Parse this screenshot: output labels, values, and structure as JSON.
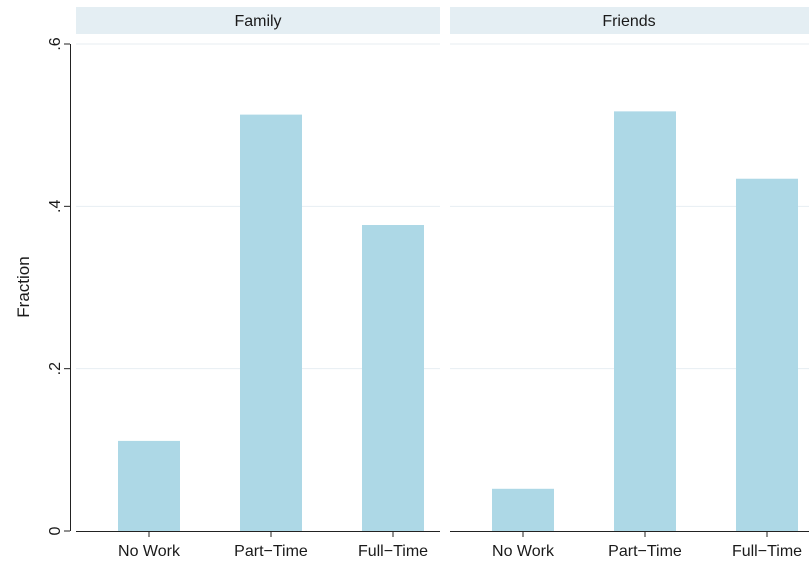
{
  "chart_data": {
    "type": "bar",
    "ylabel": "Fraction",
    "ylim": [
      0,
      0.6
    ],
    "yticks": [
      {
        "value": 0,
        "label": "0"
      },
      {
        "value": 0.2,
        "label": ".2"
      },
      {
        "value": 0.4,
        "label": ".4"
      },
      {
        "value": 0.6,
        "label": ".6"
      }
    ],
    "grid": true,
    "bar_color": "#add8e6",
    "header_color": "#e4eef3",
    "categories": [
      "No Work",
      "Part−Time",
      "Full−Time"
    ],
    "panels": [
      {
        "title": "Family",
        "values": [
          0.111,
          0.513,
          0.377
        ]
      },
      {
        "title": "Friends",
        "values": [
          0.052,
          0.517,
          0.434
        ]
      }
    ]
  }
}
